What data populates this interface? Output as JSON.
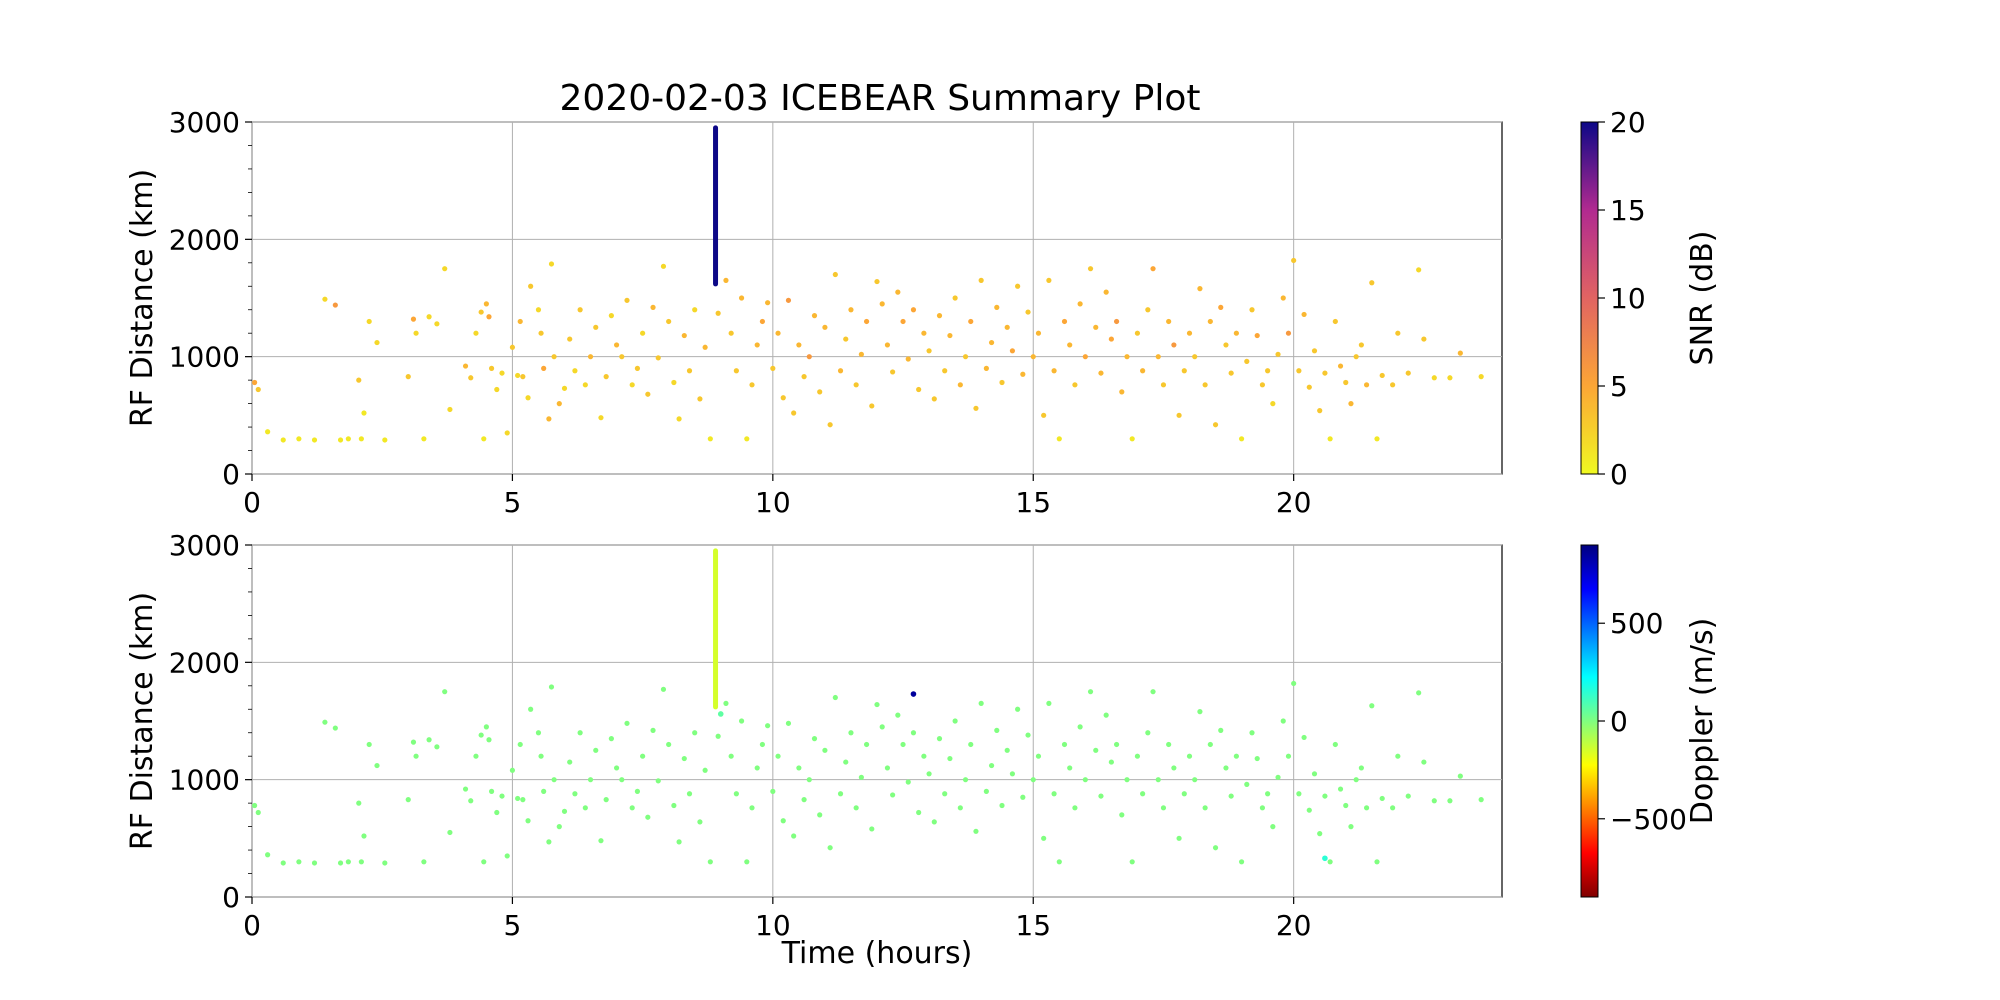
{
  "title": "2020-02-03 ICEBEAR Summary Plot",
  "colors": {
    "grid": "#b0b0b0",
    "axis": "#000000",
    "background": "#ffffff"
  },
  "chart_data": [
    {
      "type": "scatter",
      "panel": "top",
      "xlabel": "",
      "ylabel": "RF Distance (km)",
      "xlim": [
        0,
        24
      ],
      "ylim": [
        0,
        3000
      ],
      "x_ticks": [
        0,
        5,
        10,
        15,
        20
      ],
      "y_ticks": [
        0,
        1000,
        2000,
        3000
      ],
      "grid": true,
      "color_by": "SNR (dB)",
      "colorbar": {
        "label": "SNR (dB)",
        "colormap": "plasma_r",
        "range": [
          0,
          20
        ],
        "ticks": [
          0,
          5,
          10,
          15,
          20
        ]
      },
      "vertical_streak": {
        "x": 8.9,
        "y_from": 1620,
        "y_to": 2950,
        "value": 20
      },
      "points": [
        [
          0.05,
          780,
          5
        ],
        [
          0.12,
          720,
          3
        ],
        [
          0.3,
          360,
          1
        ],
        [
          0.6,
          290,
          1
        ],
        [
          0.9,
          300,
          1
        ],
        [
          1.2,
          290,
          1
        ],
        [
          1.4,
          1490,
          2
        ],
        [
          1.6,
          1440,
          6
        ],
        [
          1.7,
          290,
          1
        ],
        [
          1.85,
          300,
          1
        ],
        [
          2.05,
          800,
          3
        ],
        [
          2.1,
          300,
          1
        ],
        [
          2.15,
          520,
          1
        ],
        [
          2.25,
          1300,
          2
        ],
        [
          2.4,
          1120,
          2
        ],
        [
          2.55,
          290,
          1
        ],
        [
          3.0,
          830,
          3
        ],
        [
          3.1,
          1320,
          5
        ],
        [
          3.15,
          1200,
          2
        ],
        [
          3.3,
          300,
          1
        ],
        [
          3.4,
          1340,
          2
        ],
        [
          3.55,
          1280,
          2
        ],
        [
          3.7,
          1750,
          2
        ],
        [
          3.8,
          550,
          2
        ],
        [
          4.1,
          920,
          4
        ],
        [
          4.2,
          820,
          3
        ],
        [
          4.3,
          1200,
          2
        ],
        [
          4.4,
          1380,
          3
        ],
        [
          4.45,
          300,
          1
        ],
        [
          4.5,
          1450,
          4
        ],
        [
          4.55,
          1340,
          5
        ],
        [
          4.6,
          900,
          3
        ],
        [
          4.7,
          720,
          2
        ],
        [
          4.8,
          860,
          2
        ],
        [
          4.9,
          350,
          2
        ],
        [
          5.0,
          1080,
          3
        ],
        [
          5.1,
          840,
          2
        ],
        [
          5.15,
          1300,
          4
        ],
        [
          5.2,
          830,
          3
        ],
        [
          5.3,
          650,
          2
        ],
        [
          5.35,
          1600,
          3
        ],
        [
          5.5,
          1400,
          2
        ],
        [
          5.55,
          1200,
          3
        ],
        [
          5.6,
          900,
          5
        ],
        [
          5.7,
          470,
          4
        ],
        [
          5.75,
          1790,
          2
        ],
        [
          5.8,
          1000,
          3
        ],
        [
          5.9,
          600,
          4
        ],
        [
          6.0,
          730,
          2
        ],
        [
          6.1,
          1150,
          3
        ],
        [
          6.2,
          880,
          2
        ],
        [
          6.3,
          1400,
          3
        ],
        [
          6.4,
          760,
          2
        ],
        [
          6.5,
          1000,
          4
        ],
        [
          6.6,
          1250,
          3
        ],
        [
          6.7,
          480,
          2
        ],
        [
          6.8,
          830,
          3
        ],
        [
          6.9,
          1350,
          2
        ],
        [
          7.0,
          1100,
          4
        ],
        [
          7.1,
          1000,
          3
        ],
        [
          7.2,
          1480,
          3
        ],
        [
          7.3,
          760,
          2
        ],
        [
          7.4,
          900,
          3
        ],
        [
          7.5,
          1200,
          2
        ],
        [
          7.6,
          680,
          3
        ],
        [
          7.7,
          1420,
          4
        ],
        [
          7.8,
          990,
          3
        ],
        [
          7.9,
          1770,
          2
        ],
        [
          8.0,
          1300,
          3
        ],
        [
          8.1,
          780,
          2
        ],
        [
          8.2,
          470,
          2
        ],
        [
          8.3,
          1180,
          4
        ],
        [
          8.4,
          880,
          3
        ],
        [
          8.5,
          1400,
          2
        ],
        [
          8.6,
          640,
          3
        ],
        [
          8.7,
          1080,
          4
        ],
        [
          8.8,
          300,
          1
        ],
        [
          8.95,
          1370,
          3
        ],
        [
          9.1,
          1650,
          4
        ],
        [
          9.2,
          1200,
          3
        ],
        [
          9.3,
          880,
          3
        ],
        [
          9.4,
          1500,
          4
        ],
        [
          9.5,
          300,
          1
        ],
        [
          9.6,
          760,
          3
        ],
        [
          9.7,
          1100,
          4
        ],
        [
          9.8,
          1300,
          5
        ],
        [
          9.9,
          1460,
          4
        ],
        [
          10.0,
          900,
          3
        ],
        [
          10.1,
          1200,
          4
        ],
        [
          10.2,
          650,
          3
        ],
        [
          10.3,
          1480,
          6
        ],
        [
          10.4,
          520,
          3
        ],
        [
          10.5,
          1100,
          4
        ],
        [
          10.6,
          830,
          3
        ],
        [
          10.7,
          1000,
          6
        ],
        [
          10.8,
          1350,
          4
        ],
        [
          10.9,
          700,
          3
        ],
        [
          11.0,
          1250,
          4
        ],
        [
          11.1,
          420,
          3
        ],
        [
          11.2,
          1700,
          3
        ],
        [
          11.3,
          880,
          4
        ],
        [
          11.4,
          1150,
          3
        ],
        [
          11.5,
          1400,
          4
        ],
        [
          11.6,
          760,
          3
        ],
        [
          11.7,
          1020,
          4
        ],
        [
          11.8,
          1300,
          5
        ],
        [
          11.9,
          580,
          3
        ],
        [
          12.0,
          1640,
          3
        ],
        [
          12.1,
          1450,
          4
        ],
        [
          12.2,
          1100,
          4
        ],
        [
          12.3,
          870,
          3
        ],
        [
          12.4,
          1550,
          4
        ],
        [
          12.5,
          1300,
          5
        ],
        [
          12.6,
          980,
          4
        ],
        [
          12.7,
          1400,
          5
        ],
        [
          12.8,
          720,
          3
        ],
        [
          12.9,
          1200,
          4
        ],
        [
          13.0,
          1050,
          3
        ],
        [
          13.1,
          640,
          3
        ],
        [
          13.2,
          1350,
          4
        ],
        [
          13.3,
          880,
          3
        ],
        [
          13.4,
          1180,
          4
        ],
        [
          13.5,
          1500,
          3
        ],
        [
          13.6,
          760,
          4
        ],
        [
          13.7,
          1000,
          3
        ],
        [
          13.8,
          1300,
          5
        ],
        [
          13.9,
          560,
          3
        ],
        [
          14.0,
          1650,
          3
        ],
        [
          14.1,
          900,
          4
        ],
        [
          14.2,
          1120,
          4
        ],
        [
          14.3,
          1420,
          4
        ],
        [
          14.4,
          780,
          3
        ],
        [
          14.5,
          1250,
          4
        ],
        [
          14.6,
          1050,
          5
        ],
        [
          14.7,
          1600,
          3
        ],
        [
          14.8,
          850,
          4
        ],
        [
          14.9,
          1380,
          3
        ],
        [
          15.0,
          1000,
          4
        ],
        [
          15.1,
          1200,
          4
        ],
        [
          15.2,
          500,
          3
        ],
        [
          15.3,
          1650,
          3
        ],
        [
          15.4,
          880,
          4
        ],
        [
          15.5,
          300,
          1
        ],
        [
          15.6,
          1300,
          5
        ],
        [
          15.7,
          1100,
          4
        ],
        [
          15.8,
          760,
          3
        ],
        [
          15.9,
          1450,
          4
        ],
        [
          16.0,
          1000,
          5
        ],
        [
          16.1,
          1750,
          3
        ],
        [
          16.2,
          1250,
          4
        ],
        [
          16.3,
          860,
          4
        ],
        [
          16.4,
          1550,
          4
        ],
        [
          16.5,
          1150,
          5
        ],
        [
          16.6,
          1300,
          6
        ],
        [
          16.7,
          700,
          4
        ],
        [
          16.8,
          1000,
          4
        ],
        [
          16.9,
          300,
          1
        ],
        [
          17.0,
          1200,
          3
        ],
        [
          17.1,
          880,
          4
        ],
        [
          17.2,
          1400,
          3
        ],
        [
          17.3,
          1750,
          5
        ],
        [
          17.4,
          1000,
          4
        ],
        [
          17.5,
          760,
          3
        ],
        [
          17.6,
          1300,
          4
        ],
        [
          17.7,
          1100,
          6
        ],
        [
          17.8,
          500,
          3
        ],
        [
          17.9,
          880,
          3
        ],
        [
          18.0,
          1200,
          4
        ],
        [
          18.1,
          1000,
          3
        ],
        [
          18.2,
          1580,
          4
        ],
        [
          18.3,
          760,
          3
        ],
        [
          18.4,
          1300,
          4
        ],
        [
          18.5,
          420,
          3
        ],
        [
          18.6,
          1420,
          5
        ],
        [
          18.7,
          1100,
          3
        ],
        [
          18.8,
          860,
          3
        ],
        [
          18.9,
          1200,
          4
        ],
        [
          19.0,
          300,
          1
        ],
        [
          19.1,
          960,
          3
        ],
        [
          19.2,
          1400,
          3
        ],
        [
          19.3,
          1180,
          5
        ],
        [
          19.4,
          760,
          3
        ],
        [
          19.5,
          880,
          3
        ],
        [
          19.6,
          600,
          2
        ],
        [
          19.7,
          1020,
          3
        ],
        [
          19.8,
          1500,
          4
        ],
        [
          19.9,
          1200,
          6
        ],
        [
          20.0,
          1820,
          3
        ],
        [
          20.1,
          880,
          3
        ],
        [
          20.2,
          1360,
          4
        ],
        [
          20.3,
          740,
          3
        ],
        [
          20.4,
          1050,
          3
        ],
        [
          20.5,
          540,
          3
        ],
        [
          20.6,
          860,
          3
        ],
        [
          20.7,
          300,
          1
        ],
        [
          20.8,
          1300,
          3
        ],
        [
          20.9,
          920,
          4
        ],
        [
          21.0,
          780,
          3
        ],
        [
          21.1,
          600,
          4
        ],
        [
          21.2,
          1000,
          3
        ],
        [
          21.3,
          1100,
          3
        ],
        [
          21.4,
          760,
          4
        ],
        [
          21.5,
          1630,
          3
        ],
        [
          21.6,
          300,
          1
        ],
        [
          21.7,
          840,
          3
        ],
        [
          21.9,
          760,
          3
        ],
        [
          22.0,
          1200,
          3
        ],
        [
          22.2,
          860,
          3
        ],
        [
          22.4,
          1740,
          2
        ],
        [
          22.5,
          1150,
          3
        ],
        [
          22.7,
          820,
          2
        ],
        [
          23.0,
          820,
          2
        ],
        [
          23.2,
          1030,
          4
        ],
        [
          23.6,
          830,
          2
        ]
      ]
    },
    {
      "type": "scatter",
      "panel": "bottom",
      "xlabel": "Time (hours)",
      "ylabel": "RF Distance (km)",
      "xlim": [
        0,
        24
      ],
      "ylim": [
        0,
        3000
      ],
      "x_ticks": [
        0,
        5,
        10,
        15,
        20
      ],
      "y_ticks": [
        0,
        1000,
        2000,
        3000
      ],
      "grid": true,
      "color_by": "Doppler (m/s)",
      "colorbar": {
        "label": "Doppler (m/s)",
        "colormap": "jet_r",
        "range": [
          -900,
          900
        ],
        "ticks": [
          -500,
          0,
          500
        ]
      },
      "vertical_streak": {
        "x": 8.9,
        "y_from": 1620,
        "y_to": 2950,
        "value": -150
      },
      "highlight_points": [
        [
          12.7,
          1730,
          850
        ],
        [
          20.6,
          330,
          150
        ],
        [
          9.0,
          1560,
          60
        ]
      ],
      "points_note": "same detections as top panel",
      "point_value_default": 0
    }
  ]
}
